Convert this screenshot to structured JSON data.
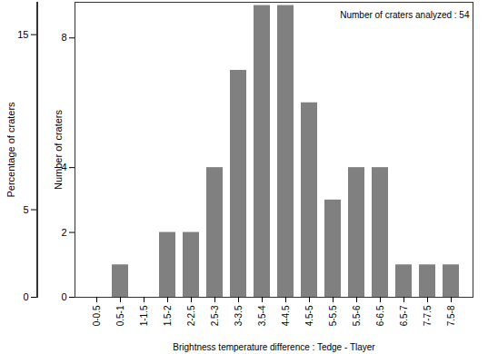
{
  "chart_data": {
    "type": "bar",
    "categories": [
      "0-0.5",
      "0.5-1",
      "1-1.5",
      "1.5-2",
      "2-2.5",
      "2.5-3",
      "3-3.5",
      "3.5-4",
      "4-4.5",
      "4.5-5",
      "5-5.5",
      "5.5-6",
      "6-6.5",
      "6.5-7",
      "7-7.5",
      "7.5-8"
    ],
    "values": [
      0,
      1,
      0,
      2,
      2,
      4,
      7,
      9,
      9,
      6,
      3,
      4,
      4,
      1,
      1,
      1
    ],
    "color": "#808080",
    "xlabel": "Brightness temperature difference : Tedge - Tlayer",
    "ylabel": "Number of craters",
    "ylim": [
      0,
      9.1
    ],
    "yticks": [
      0,
      2,
      4,
      8
    ],
    "y2label": "Percentage of craters",
    "y2lim": [
      0,
      16.85
    ],
    "y2ticks": [
      0,
      5,
      15
    ],
    "annotations": [
      "Number of craters analyzed : 54"
    ],
    "grid": false
  }
}
